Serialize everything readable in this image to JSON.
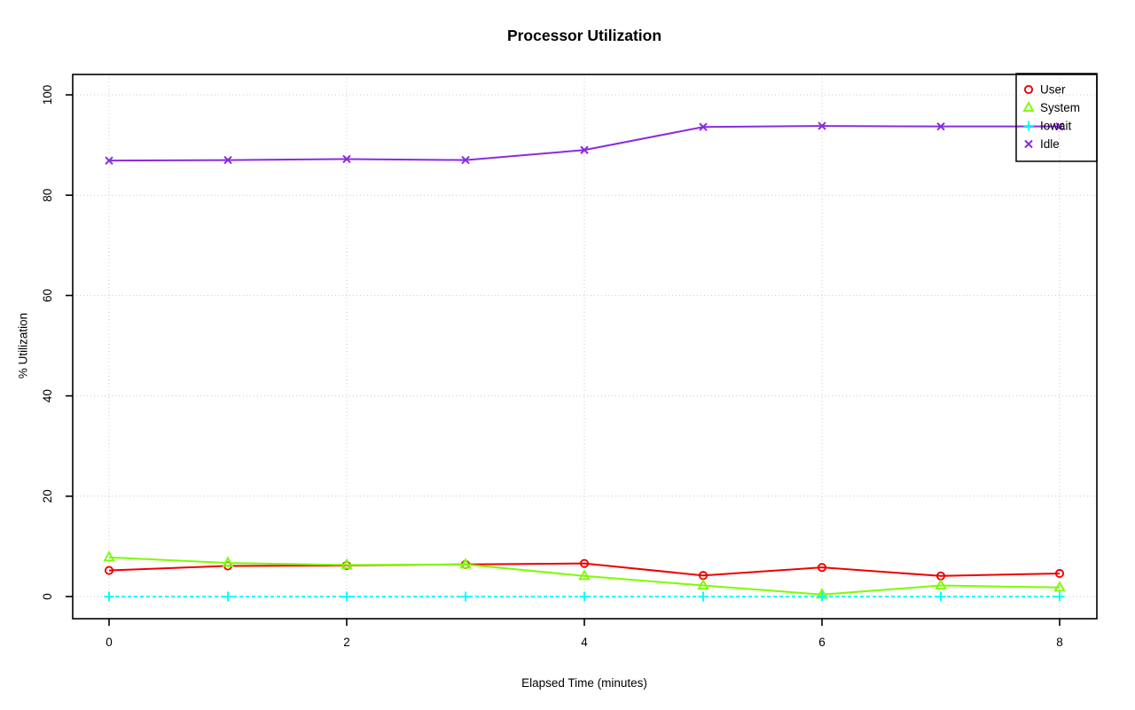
{
  "page": {
    "background": "#ffffff"
  },
  "chart_data": {
    "type": "line",
    "title": "Processor Utilization",
    "xlabel": "Elapsed Time (minutes)",
    "ylabel": "% Utilization",
    "x": [
      0,
      1,
      2,
      3,
      4,
      5,
      6,
      7,
      8
    ],
    "xlim": [
      0,
      8
    ],
    "ylim": [
      0,
      100
    ],
    "x_ticks": [
      0,
      2,
      4,
      6,
      8
    ],
    "y_ticks": [
      0,
      20,
      40,
      60,
      80,
      100
    ],
    "grid": true,
    "grid_style": "dotted",
    "grid_color": "#c9c9c9",
    "legend_position": "top-right",
    "series": [
      {
        "name": "User",
        "color": "#ee0000",
        "marker": "circle",
        "line_style": "solid",
        "values": [
          5.2,
          6.1,
          6.2,
          6.4,
          6.6,
          4.2,
          5.8,
          4.1,
          4.6
        ]
      },
      {
        "name": "System",
        "color": "#7cfc00",
        "marker": "triangle",
        "line_style": "solid",
        "values": [
          7.8,
          6.7,
          6.3,
          6.4,
          4.1,
          2.2,
          0.4,
          2.2,
          1.8
        ]
      },
      {
        "name": "Iowait",
        "color": "#00ffff",
        "marker": "plus",
        "line_style": "dashed",
        "values": [
          0,
          0,
          0,
          0,
          0,
          0,
          0,
          0,
          0
        ]
      },
      {
        "name": "Idle",
        "color": "#8a2be2",
        "marker": "x",
        "line_style": "solid",
        "values": [
          86.9,
          87.0,
          87.2,
          87.0,
          89.0,
          93.6,
          93.8,
          93.7,
          93.7
        ]
      }
    ]
  }
}
